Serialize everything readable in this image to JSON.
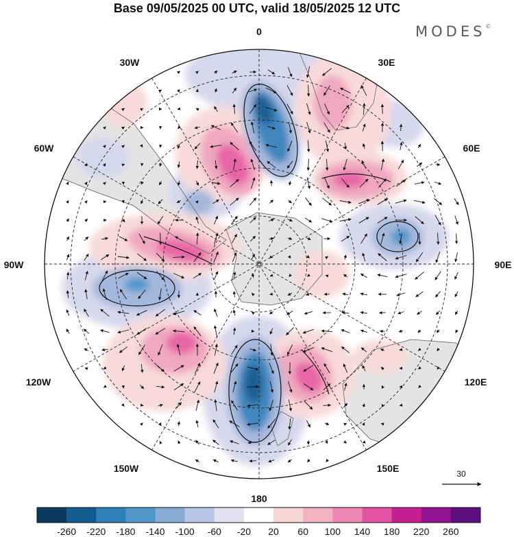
{
  "title": "Base 09/05/2025 00 UTC, valid 18/05/2025 12 UTC",
  "brand": "MODES",
  "brand_mark": "©",
  "map": {
    "projection": "south-polar-stereographic",
    "longitude_labels": {
      "top": "0",
      "bottom": "180",
      "left": "90W",
      "right": "90E",
      "upper_left_1": "30W",
      "upper_left_2": "60W",
      "upper_right_1": "30E",
      "upper_right_2": "60E",
      "lower_left_1": "120W",
      "lower_left_2": "150W",
      "lower_right_1": "120E",
      "lower_right_2": "150E"
    },
    "reference_vector_label": "30",
    "colors": {
      "land": "#e4e4e4",
      "neg_weak": "#d8d8ec",
      "neg_mid": "#a4b8dc",
      "neg_strong": "#3f86bf",
      "neg_max": "#1d5f93",
      "pos_weak": "#f8dada",
      "pos_mid": "#f0a8c0",
      "pos_strong": "#e866a6",
      "pos_max": "#d43e8e"
    }
  },
  "colorbar": {
    "ticks": [
      "-260",
      "-220",
      "-180",
      "-140",
      "-100",
      "-60",
      "-20",
      "20",
      "60",
      "100",
      "140",
      "180",
      "220",
      "260"
    ],
    "colors": [
      "#0c3a5e",
      "#135c90",
      "#2f7fba",
      "#4f97cb",
      "#88acd6",
      "#b8c8e6",
      "#e4e2f1",
      "#ffffff",
      "#f9d6d6",
      "#f4b2c2",
      "#ee87b4",
      "#e253a2",
      "#c62090",
      "#91138f",
      "#5d0f7f"
    ]
  }
}
